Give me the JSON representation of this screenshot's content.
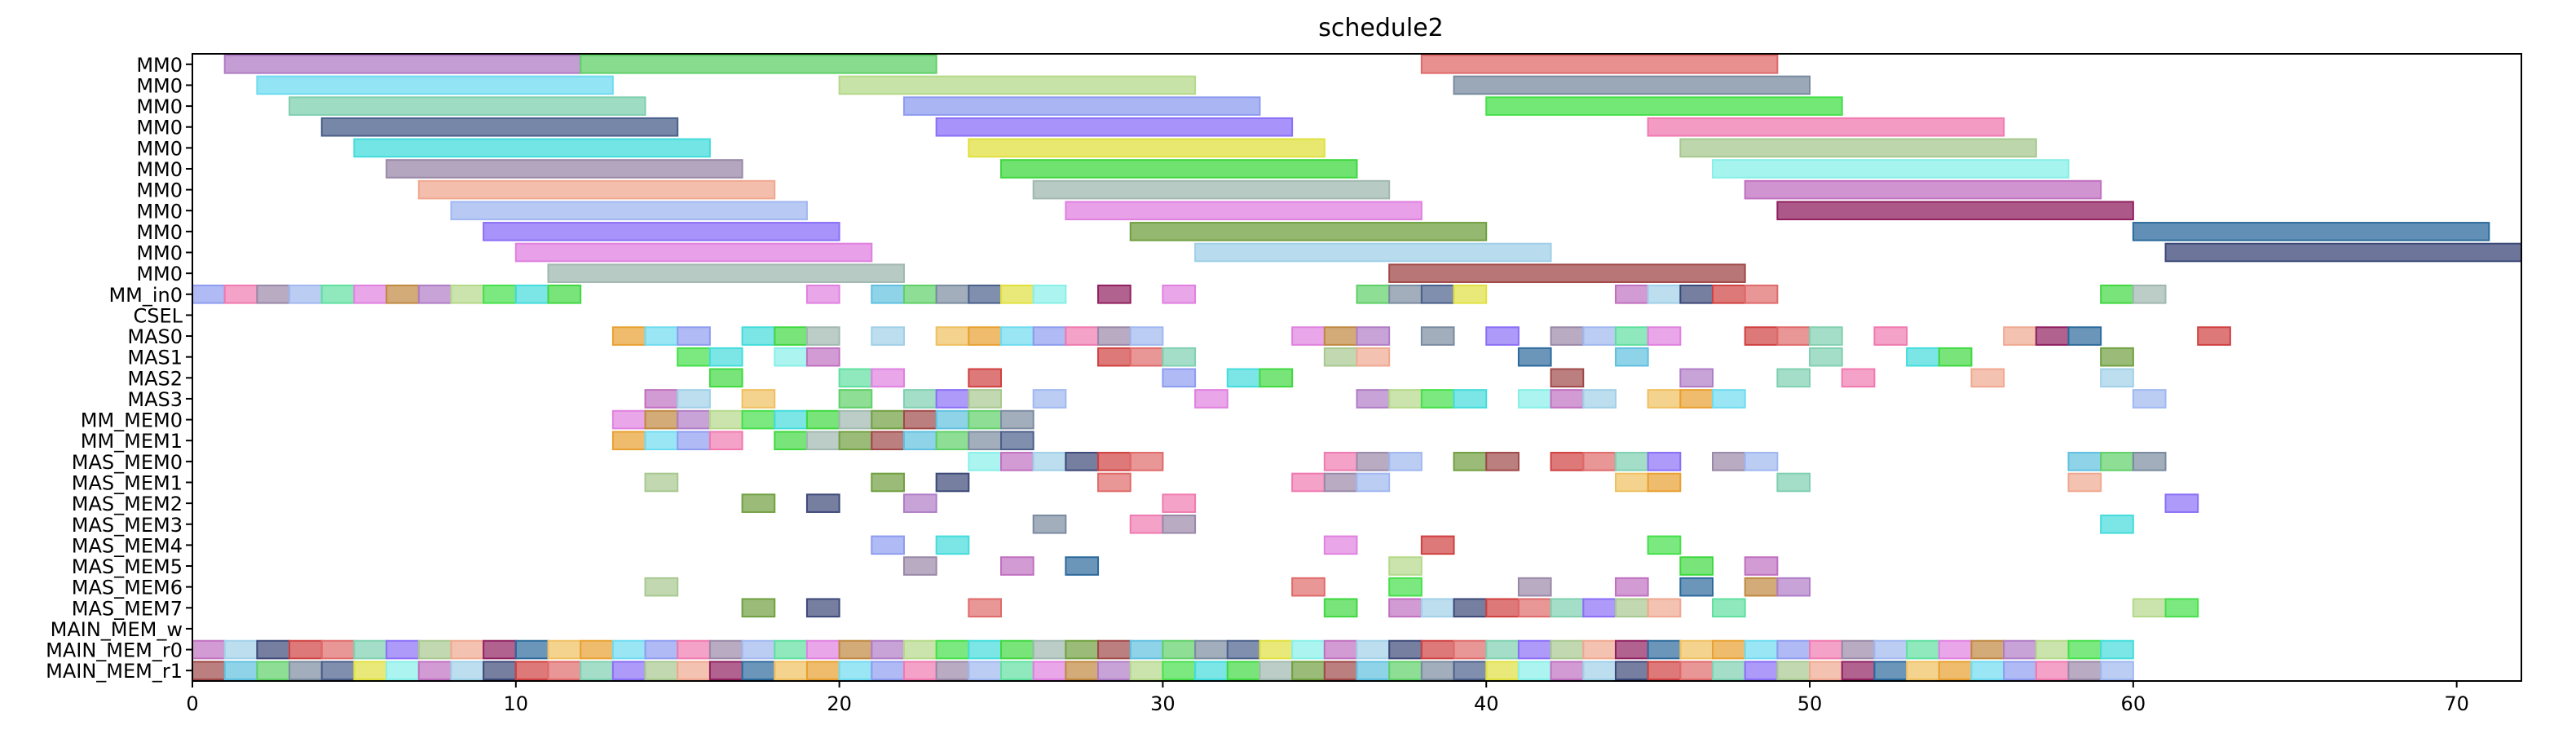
{
  "chart_data": {
    "type": "gantt",
    "title": "schedule2",
    "xlabel": "",
    "ylabel": "",
    "xlim": [
      0,
      72
    ],
    "xticks": [
      0,
      10,
      20,
      30,
      40,
      50,
      60,
      70
    ],
    "grid": false,
    "rows": [
      "MM0",
      "MM0",
      "MM0",
      "MM0",
      "MM0",
      "MM0",
      "MM0",
      "MM0",
      "MM0",
      "MM0",
      "MM0",
      "MM_in0",
      "CSEL",
      "MAS0",
      "MAS1",
      "MAS2",
      "MAS3",
      "MM_MEM0",
      "MM_MEM1",
      "MAS_MEM0",
      "MAS_MEM1",
      "MAS_MEM2",
      "MAS_MEM3",
      "MAS_MEM4",
      "MAS_MEM5",
      "MAS_MEM6",
      "MAS_MEM7",
      "MAIN_MEM_w",
      "MAIN_MEM_r0",
      "MAIN_MEM_r1"
    ],
    "palette": [
      "#b07cc6",
      "#5fd068",
      "#e06a6a",
      "#6fdbf0",
      "#b5d98a",
      "#7a8ba0",
      "#7fd0b0",
      "#8e9cf0",
      "#45e04a",
      "#4a5f8a",
      "#8a6ff7",
      "#f07ab0",
      "#44dcdc",
      "#e0e040",
      "#a8c890",
      "#9a88a8",
      "#40d840",
      "#88f0e8",
      "#f0a890",
      "#a0b8f0",
      "#a0b8b0",
      "#c070c0",
      "#902060",
      "#60e0a0",
      "#70a040",
      "#a0d0e8",
      "#2c6a9c",
      "#e080e0",
      "#a04848",
      "#3c4878",
      "#f0c060",
      "#c08840",
      "#60c0e0",
      "#d04040",
      "#e8a030"
    ],
    "bars": [
      {
        "row": 0,
        "start": 1,
        "end": 12,
        "color": 0
      },
      {
        "row": 0,
        "start": 12,
        "end": 23,
        "color": 1
      },
      {
        "row": 0,
        "start": 38,
        "end": 49,
        "color": 2
      },
      {
        "row": 1,
        "start": 2,
        "end": 13,
        "color": 3
      },
      {
        "row": 1,
        "start": 20,
        "end": 31,
        "color": 4
      },
      {
        "row": 1,
        "start": 39,
        "end": 50,
        "color": 5
      },
      {
        "row": 2,
        "start": 3,
        "end": 14,
        "color": 6
      },
      {
        "row": 2,
        "start": 22,
        "end": 33,
        "color": 7
      },
      {
        "row": 2,
        "start": 40,
        "end": 51,
        "color": 8
      },
      {
        "row": 3,
        "start": 4,
        "end": 15,
        "color": 9
      },
      {
        "row": 3,
        "start": 23,
        "end": 34,
        "color": 10
      },
      {
        "row": 3,
        "start": 45,
        "end": 56,
        "color": 11
      },
      {
        "row": 4,
        "start": 5,
        "end": 16,
        "color": 12
      },
      {
        "row": 4,
        "start": 24,
        "end": 35,
        "color": 13
      },
      {
        "row": 4,
        "start": 46,
        "end": 57,
        "color": 14
      },
      {
        "row": 5,
        "start": 6,
        "end": 17,
        "color": 15
      },
      {
        "row": 5,
        "start": 25,
        "end": 36,
        "color": 16
      },
      {
        "row": 5,
        "start": 47,
        "end": 58,
        "color": 17
      },
      {
        "row": 6,
        "start": 7,
        "end": 18,
        "color": 18
      },
      {
        "row": 6,
        "start": 26,
        "end": 37,
        "color": 20
      },
      {
        "row": 6,
        "start": 48,
        "end": 59,
        "color": 21
      },
      {
        "row": 7,
        "start": 8,
        "end": 19,
        "color": 19
      },
      {
        "row": 7,
        "start": 27,
        "end": 38,
        "color": 27
      },
      {
        "row": 7,
        "start": 49,
        "end": 60,
        "color": 22
      },
      {
        "row": 8,
        "start": 9,
        "end": 20,
        "color": 10
      },
      {
        "row": 8,
        "start": 29,
        "end": 40,
        "color": 24
      },
      {
        "row": 8,
        "start": 60,
        "end": 71,
        "color": 26
      },
      {
        "row": 9,
        "start": 10,
        "end": 21,
        "color": 27
      },
      {
        "row": 9,
        "start": 31,
        "end": 42,
        "color": 25
      },
      {
        "row": 9,
        "start": 61,
        "end": 72,
        "color": 29
      },
      {
        "row": 10,
        "start": 11,
        "end": 22,
        "color": 20
      },
      {
        "row": 10,
        "start": 37,
        "end": 48,
        "color": 28
      }
    ],
    "blocks": [
      {
        "row": 11,
        "xs": [
          0,
          1,
          2,
          3,
          4,
          5,
          6,
          7,
          8,
          9,
          10,
          11,
          19,
          21,
          22,
          23,
          24,
          25,
          26,
          28,
          30,
          36,
          37,
          38,
          39,
          44,
          45,
          46,
          47,
          48,
          59,
          60
        ]
      },
      {
        "row": 12,
        "xs": []
      },
      {
        "row": 13,
        "xs": [
          13,
          14,
          15,
          17,
          18,
          19,
          21,
          23,
          24,
          25,
          26,
          27,
          28,
          29,
          34,
          35,
          36,
          38,
          40,
          42,
          43,
          44,
          45,
          48,
          49,
          50,
          52,
          56,
          57,
          58,
          62
        ]
      },
      {
        "row": 14,
        "xs": [
          15,
          16,
          18,
          19,
          28,
          29,
          30,
          35,
          36,
          41,
          44,
          50,
          53,
          54,
          59
        ]
      },
      {
        "row": 15,
        "xs": [
          16,
          20,
          21,
          24,
          30,
          32,
          33,
          42,
          46,
          49,
          51,
          55,
          59
        ]
      },
      {
        "row": 16,
        "xs": [
          14,
          15,
          17,
          20,
          22,
          23,
          24,
          26,
          31,
          36,
          37,
          38,
          39,
          41,
          42,
          43,
          45,
          46,
          47,
          60
        ]
      },
      {
        "row": 17,
        "xs": [
          13,
          14,
          15,
          16,
          17,
          18,
          19,
          20,
          21,
          22,
          23,
          24,
          25
        ]
      },
      {
        "row": 18,
        "xs": [
          13,
          14,
          15,
          16,
          18,
          19,
          20,
          21,
          22,
          23,
          24,
          25
        ]
      },
      {
        "row": 19,
        "xs": [
          24,
          25,
          26,
          27,
          28,
          29,
          35,
          36,
          37,
          39,
          40,
          42,
          43,
          44,
          45,
          47,
          48,
          58,
          59,
          60
        ]
      },
      {
        "row": 20,
        "xs": [
          14,
          21,
          23,
          28,
          34,
          35,
          36,
          44,
          45,
          49,
          58
        ]
      },
      {
        "row": 21,
        "xs": [
          17,
          19,
          22,
          30,
          61
        ]
      },
      {
        "row": 22,
        "xs": [
          26,
          29,
          30,
          59
        ]
      },
      {
        "row": 23,
        "xs": [
          21,
          23,
          35,
          38,
          45
        ]
      },
      {
        "row": 24,
        "xs": [
          22,
          25,
          27,
          37,
          46,
          48
        ]
      },
      {
        "row": 25,
        "xs": [
          14,
          34,
          37,
          41,
          44,
          46,
          48,
          49
        ]
      },
      {
        "row": 26,
        "xs": [
          17,
          19,
          24,
          35,
          37,
          38,
          39,
          40,
          41,
          42,
          43,
          44,
          45,
          47,
          60,
          61
        ]
      },
      {
        "row": 27,
        "xs": []
      },
      {
        "row": 28,
        "xs": [
          0,
          1,
          2,
          3,
          4,
          5,
          6,
          7,
          8,
          9,
          10,
          11,
          12,
          13,
          14,
          15,
          16,
          17,
          18,
          19,
          20,
          21,
          22,
          23,
          24,
          25,
          26,
          27,
          28,
          29,
          30,
          31,
          32,
          33,
          34,
          35,
          36,
          37,
          38,
          39,
          40,
          41,
          42,
          43,
          44,
          45,
          46,
          47,
          48,
          49,
          50,
          51,
          52,
          53,
          54,
          55,
          56,
          57,
          58,
          59
        ]
      },
      {
        "row": 29,
        "xs": [
          0,
          1,
          2,
          3,
          4,
          5,
          6,
          7,
          8,
          9,
          10,
          11,
          12,
          13,
          14,
          15,
          16,
          17,
          18,
          19,
          20,
          21,
          22,
          23,
          24,
          25,
          26,
          27,
          28,
          29,
          30,
          31,
          32,
          33,
          34,
          35,
          36,
          37,
          38,
          39,
          40,
          41,
          42,
          43,
          44,
          45,
          46,
          47,
          48,
          49,
          50,
          51,
          52,
          53,
          54,
          55,
          56,
          57,
          58,
          59
        ]
      }
    ]
  }
}
